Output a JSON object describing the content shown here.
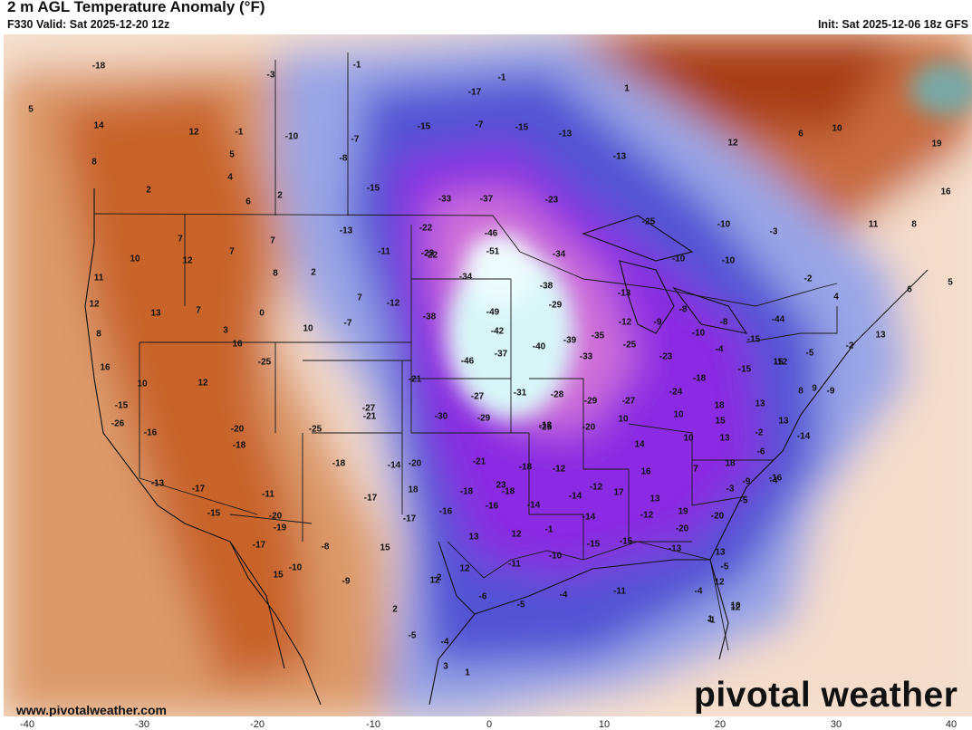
{
  "title": "2 m AGL Temperature Anomaly (°F)",
  "valid_text": "F330 Valid: Sat 2025-12-20 12z",
  "init_text": "Init: Sat 2025-12-06 18z GFS",
  "website": "www.pivotalweather.com",
  "brand": "pivotal weather",
  "colorbar_ticks": [
    "-40",
    "-30",
    "-20",
    "-10",
    "0",
    "10",
    "20",
    "30",
    "40"
  ],
  "colors": {
    "cold_core": "#d8f6f8",
    "purple": "#8a2be2",
    "blue": "#5050d8",
    "warm": "#c8642c",
    "hot": "#a83c14"
  },
  "values": [
    "-18",
    "5",
    "14",
    "8",
    "2",
    "12",
    "-1",
    "-3",
    "-1",
    "5",
    "4",
    "6",
    "2",
    "-10",
    "-7",
    "-8",
    "-15",
    "-17",
    "-15",
    "-7",
    "-15",
    "-13",
    "-13",
    "-1",
    "1",
    "12",
    "6",
    "10",
    "19",
    "16",
    "-33",
    "-37",
    "-23",
    "-22",
    "-25",
    "-10",
    "-3",
    "11",
    "8",
    "7",
    "10",
    "12",
    "7",
    "7",
    "8",
    "2",
    "-13",
    "-11",
    "-23",
    "-22",
    "-46",
    "-51",
    "-34",
    "-10",
    "-10",
    "-2",
    "4",
    "6",
    "5",
    "11",
    "12",
    "13",
    "7",
    "3",
    "0",
    "7",
    "10",
    "-7",
    "-12",
    "-38",
    "-34",
    "-38",
    "-29",
    "-13",
    "-9",
    "-8",
    "-8",
    "-44",
    "-49",
    "-42",
    "-40",
    "-39",
    "-35",
    "-12",
    "-10",
    "-15",
    "-12",
    "-5",
    "-2",
    "13",
    "8",
    "16",
    "10",
    "12",
    "16",
    "-25",
    "-46",
    "-37",
    "-33",
    "-25",
    "-23",
    "-18",
    "-15",
    "15",
    "-4",
    "-21",
    "-27",
    "-31",
    "-28",
    "-29",
    "-27",
    "-24",
    "18",
    "13",
    "8",
    "9",
    "-9",
    "-15",
    "-27",
    "-30",
    "-29",
    "-13",
    "10",
    "10",
    "15",
    "13",
    "-26",
    "-20",
    "-25",
    "-21",
    "-25",
    "-20",
    "14",
    "10",
    "13",
    "-2",
    "-14",
    "-16",
    "-18",
    "-18",
    "-20",
    "-21",
    "23",
    "-18",
    "-12",
    "-12",
    "16",
    "7",
    "18",
    "-6",
    "-4",
    "-13",
    "-17",
    "-11",
    "-14",
    "18",
    "-18",
    "-18",
    "-16",
    "-14",
    "-14",
    "17",
    "13",
    "19",
    "-3",
    "-5",
    "-9",
    "-15",
    "-20",
    "-19",
    "-17",
    "-17",
    "-16",
    "13",
    "12",
    "-1",
    "-14",
    "-12",
    "-20",
    "-20",
    "-16",
    "-17",
    "15",
    "15",
    "12",
    "12",
    "-11",
    "-10",
    "-15",
    "-15",
    "-13",
    "13",
    "12",
    "12",
    "-8",
    "-9",
    "-10",
    "-5",
    "-2",
    "-6",
    "-5",
    "-4",
    "-11",
    "-4",
    "10",
    "1",
    "-1",
    "2",
    "-5",
    "-4",
    "3",
    "1"
  ]
}
